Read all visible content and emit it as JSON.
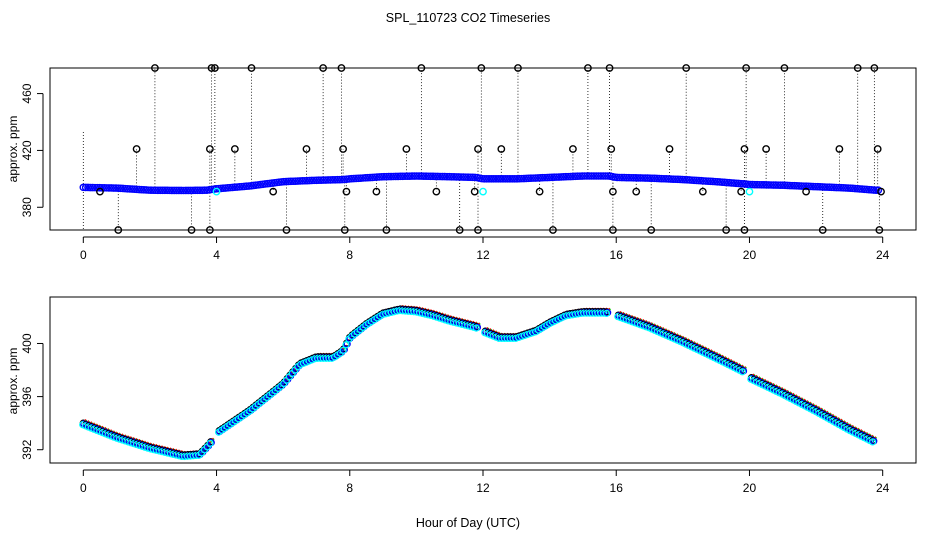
{
  "title": "SPL_110723  CO2 Timeseries",
  "xlabel": "Hour of Day (UTC)",
  "chart_data": [
    {
      "type": "scatter",
      "panel": "top",
      "ylabel": "approx. ppm",
      "xlim": [
        -1,
        25
      ],
      "ylim": [
        364,
        478
      ],
      "xticks": [
        0,
        4,
        8,
        12,
        16,
        20,
        24
      ],
      "yticks": [
        380,
        420,
        460
      ],
      "clip_high": 478,
      "clip_low": 364,
      "series": [
        {
          "name": "baseline",
          "color": "#0000ff",
          "points": [
            [
              0,
              394
            ],
            [
              1,
              393.5
            ],
            [
              2,
              392
            ],
            [
              3,
              391.8
            ],
            [
              3.7,
              392
            ],
            [
              4,
              393
            ],
            [
              5,
              395
            ],
            [
              6,
              398
            ],
            [
              7,
              399
            ],
            [
              7.8,
              399.5
            ],
            [
              8,
              400
            ],
            [
              9,
              401.5
            ],
            [
              10,
              402
            ],
            [
              11,
              401.5
            ],
            [
              11.8,
              401
            ],
            [
              12,
              400
            ],
            [
              13,
              400
            ],
            [
              14,
              401
            ],
            [
              15,
              402
            ],
            [
              15.8,
              402
            ],
            [
              16,
              401
            ],
            [
              17,
              400.5
            ],
            [
              18,
              399.5
            ],
            [
              19,
              398
            ],
            [
              19.8,
              396.5
            ],
            [
              20,
              396
            ],
            [
              21,
              395.5
            ],
            [
              22,
              394.5
            ],
            [
              23,
              393.5
            ],
            [
              23.8,
              392
            ]
          ]
        },
        {
          "name": "high outliers",
          "color": "#000000",
          "x": [
            2.15,
            3.85,
            3.95,
            5.05,
            7.2,
            7.75,
            10.15,
            11.95,
            13.05,
            15.15,
            15.8,
            18.1,
            19.9,
            21.05,
            23.25,
            23.75
          ]
        },
        {
          "name": "upper spikes",
          "color": "#000000",
          "points": [
            [
              1.6,
              421
            ],
            [
              3.8,
              421
            ],
            [
              4.55,
              421
            ],
            [
              6.7,
              421
            ],
            [
              7.8,
              421
            ],
            [
              9.7,
              421
            ],
            [
              11.85,
              421
            ],
            [
              12.55,
              421
            ],
            [
              14.7,
              421
            ],
            [
              15.85,
              421
            ],
            [
              17.6,
              421
            ],
            [
              19.85,
              421
            ],
            [
              20.5,
              421
            ],
            [
              22.7,
              421
            ],
            [
              23.85,
              421
            ]
          ]
        },
        {
          "name": "mid spikes",
          "color": "#000000",
          "points": [
            [
              0.5,
              391
            ],
            [
              5.7,
              391
            ],
            [
              7.9,
              391
            ],
            [
              8.8,
              391
            ],
            [
              10.6,
              391
            ],
            [
              11.75,
              391
            ],
            [
              13.7,
              391
            ],
            [
              15.9,
              391
            ],
            [
              16.6,
              391
            ],
            [
              18.6,
              391
            ],
            [
              19.75,
              391
            ],
            [
              21.7,
              391
            ],
            [
              23.95,
              391
            ]
          ]
        },
        {
          "name": "low outliers",
          "color": "#000000",
          "x": [
            1.05,
            3.25,
            3.8,
            6.1,
            7.85,
            9.1,
            11.3,
            11.85,
            14.1,
            15.9,
            17.05,
            19.3,
            19.85,
            22.2,
            23.9
          ]
        },
        {
          "name": "cyan markers",
          "color": "#00ffff",
          "points": [
            [
              4,
              391
            ],
            [
              12,
              391
            ],
            [
              20,
              391
            ]
          ]
        }
      ]
    },
    {
      "type": "scatter",
      "panel": "bottom",
      "ylabel": "approx. ppm",
      "xlim": [
        -1,
        25
      ],
      "ylim": [
        391,
        403.5
      ],
      "xticks": [
        0,
        4,
        8,
        12,
        16,
        20,
        24
      ],
      "yticks": [
        392,
        396,
        400
      ],
      "colors": [
        "#000000",
        "#ff0000",
        "#00cc00",
        "#0000ff",
        "#00ffff"
      ],
      "curve": [
        [
          0,
          394
        ],
        [
          0.5,
          393.5
        ],
        [
          1,
          393
        ],
        [
          2,
          392.2
        ],
        [
          3,
          391.6
        ],
        [
          3.5,
          391.7
        ],
        [
          3.8,
          392.5
        ],
        [
          4,
          393.3
        ],
        [
          5,
          395
        ],
        [
          6,
          397
        ],
        [
          6.5,
          398.5
        ],
        [
          7,
          399
        ],
        [
          7.5,
          399
        ],
        [
          7.8,
          399.5
        ],
        [
          8,
          400.5
        ],
        [
          8.5,
          401.5
        ],
        [
          9,
          402.3
        ],
        [
          9.5,
          402.6
        ],
        [
          10,
          402.5
        ],
        [
          10.5,
          402.2
        ],
        [
          11,
          401.8
        ],
        [
          11.8,
          401.3
        ],
        [
          12,
          401
        ],
        [
          12.5,
          400.5
        ],
        [
          13,
          400.5
        ],
        [
          13.6,
          401
        ],
        [
          14,
          401.6
        ],
        [
          14.5,
          402.2
        ],
        [
          15,
          402.4
        ],
        [
          15.7,
          402.4
        ],
        [
          16,
          402.2
        ],
        [
          17,
          401.3
        ],
        [
          18,
          400.2
        ],
        [
          19,
          399
        ],
        [
          19.8,
          398
        ],
        [
          20,
          397.5
        ],
        [
          21,
          396.3
        ],
        [
          22,
          395
        ],
        [
          23,
          393.6
        ],
        [
          23.8,
          392.6
        ]
      ],
      "gaps": [
        [
          3.9,
          4.0
        ],
        [
          11.85,
          12.0
        ],
        [
          15.8,
          16.0
        ],
        [
          19.85,
          20.0
        ]
      ]
    }
  ]
}
